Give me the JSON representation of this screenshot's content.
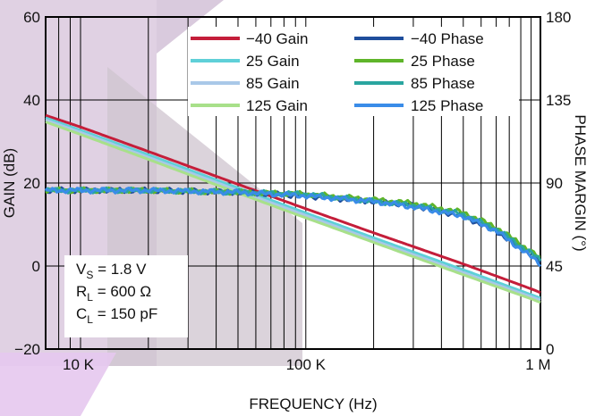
{
  "chart_data": {
    "type": "line",
    "title": "",
    "xlabel": "FREQUENCY (Hz)",
    "ylabel_left": "GAIN (dB)",
    "ylabel_right": "PHASE MARGIN (°)",
    "x_scale": "log",
    "xlim": [
      7000,
      1100000
    ],
    "ylim_left": [
      -20,
      60
    ],
    "ylim_right": [
      0,
      180
    ],
    "grid": true,
    "legend_position": "top-right",
    "x_ticks": [
      {
        "value": 10000,
        "label": "10 K"
      },
      {
        "value": 100000,
        "label": "100 K"
      },
      {
        "value": 1000000,
        "label": "1 M"
      }
    ],
    "y_left_ticks": [
      {
        "value": -20,
        "label": "−20"
      },
      {
        "value": 0,
        "label": "0"
      },
      {
        "value": 20,
        "label": "20"
      },
      {
        "value": 40,
        "label": "40"
      },
      {
        "value": 60,
        "label": "60"
      }
    ],
    "y_right_ticks": [
      {
        "value": 0,
        "label": "0"
      },
      {
        "value": 45,
        "label": "45"
      },
      {
        "value": 90,
        "label": "90"
      },
      {
        "value": 135,
        "label": "135"
      },
      {
        "value": 180,
        "label": "180"
      }
    ],
    "series": [
      {
        "name": "−40 Gain",
        "axis": "left",
        "color": "#c41e3a",
        "x": [
          7000,
          10000,
          20000,
          50000,
          100000,
          200000,
          500000,
          1000000,
          1100000
        ],
        "y": [
          36.3,
          33.5,
          27.6,
          19.7,
          13.8,
          8.0,
          0.5,
          -5.5,
          -6.4
        ]
      },
      {
        "name": "25 Gain",
        "axis": "left",
        "color": "#5fd0d8",
        "x": [
          7000,
          10000,
          20000,
          50000,
          100000,
          200000,
          500000,
          1000000,
          1100000
        ],
        "y": [
          35.7,
          32.7,
          26.8,
          18.8,
          12.8,
          6.8,
          -0.9,
          -6.9,
          -7.7
        ]
      },
      {
        "name": "85 Gain",
        "axis": "left",
        "color": "#a9c8e8",
        "x": [
          7000,
          10000,
          20000,
          50000,
          100000,
          200000,
          500000,
          1000000,
          1100000
        ],
        "y": [
          35.2,
          32.2,
          26.2,
          18.2,
          12.2,
          6.2,
          -1.6,
          -7.4,
          -8.2
        ]
      },
      {
        "name": "125 Gain",
        "axis": "left",
        "color": "#a8e08a",
        "x": [
          7000,
          10000,
          20000,
          50000,
          100000,
          200000,
          500000,
          1000000,
          1100000
        ],
        "y": [
          34.7,
          31.7,
          25.7,
          17.6,
          11.6,
          5.7,
          -2.1,
          -7.9,
          -8.8
        ]
      },
      {
        "name": "−40 Phase",
        "axis": "right",
        "color": "#1f4e9c",
        "x": [
          7000,
          10000,
          20000,
          50000,
          100000,
          200000,
          300000,
          500000,
          700000,
          1000000,
          1100000
        ],
        "y": [
          86,
          86,
          86,
          85,
          83,
          80,
          78,
          72,
          64,
          51,
          47
        ]
      },
      {
        "name": "25 Phase",
        "axis": "right",
        "color": "#5fb52a",
        "x": [
          7000,
          10000,
          20000,
          50000,
          100000,
          200000,
          300000,
          500000,
          700000,
          1000000,
          1100000
        ],
        "y": [
          86,
          86,
          86,
          85,
          84,
          81,
          79,
          74,
          66,
          53,
          49
        ]
      },
      {
        "name": "85 Phase",
        "axis": "right",
        "color": "#2aa5a0",
        "x": [
          7000,
          10000,
          20000,
          50000,
          100000,
          200000,
          300000,
          500000,
          700000,
          1000000,
          1100000
        ],
        "y": [
          86,
          86,
          86,
          85,
          84,
          80,
          78,
          73,
          65,
          52,
          48
        ]
      },
      {
        "name": "125 Phase",
        "axis": "right",
        "color": "#3a8ce8",
        "x": [
          7000,
          10000,
          20000,
          50000,
          100000,
          200000,
          300000,
          500000,
          700000,
          1000000,
          1100000
        ],
        "y": [
          86,
          86,
          86,
          85,
          83,
          80,
          77,
          72,
          64,
          50,
          46
        ]
      }
    ],
    "annotations": [
      {
        "main": "V",
        "sub": "S",
        "rest": " = 1.8 V"
      },
      {
        "main": "R",
        "sub": "L",
        "rest": " = 600 Ω"
      },
      {
        "main": "C",
        "sub": "L",
        "rest": " = 150 pF"
      }
    ]
  }
}
